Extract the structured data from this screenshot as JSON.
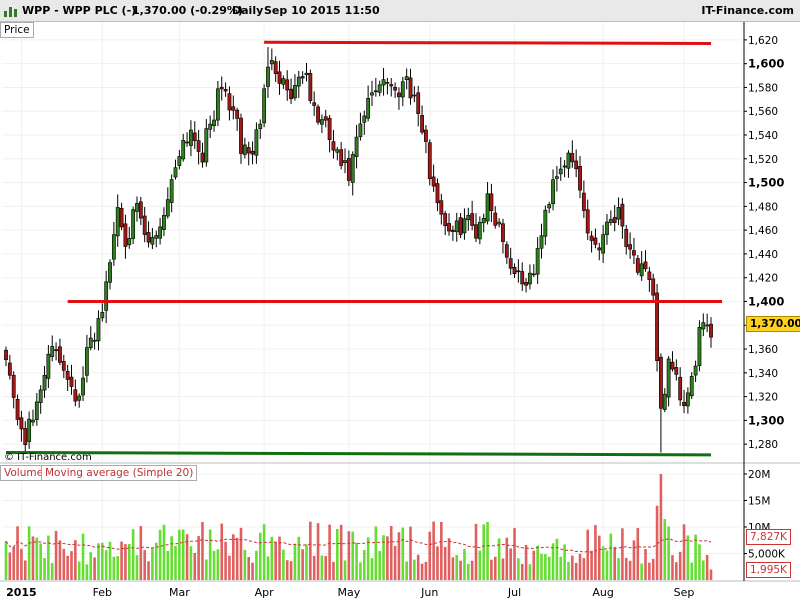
{
  "header": {
    "symbol": "WPP",
    "name": "WPP - WPP PLC (-)",
    "quote": "1,370.00 (-0.29%)",
    "interval": "Daily",
    "datetime": "Sep 10 2015 11:50",
    "brand": "IT-Finance.com"
  },
  "price_panel": {
    "tag": "Price",
    "watermark": "© IT-Finance.com",
    "last_price_label": "1,370.00",
    "colors": {
      "up": "#2e7d1e",
      "down": "#a01818",
      "last_price_bg": "#ffd21f"
    }
  },
  "volume_panel": {
    "tags": [
      "Volume",
      "Moving average (Simple 20)"
    ],
    "ma_value_label": "7,827K",
    "last_volume_label": "1,995K",
    "colors": {
      "up": "#66dd33",
      "down": "#e06060",
      "ma": "#cc3333"
    }
  },
  "chart_data": [
    {
      "type": "candlestick",
      "ylim": [
        1265,
        1630
      ],
      "y_ticks": [
        1280,
        1300,
        1320,
        1340,
        1360,
        1380,
        1400,
        1420,
        1440,
        1460,
        1480,
        1500,
        1520,
        1540,
        1560,
        1580,
        1600,
        1620
      ],
      "y_tick_labels": [
        "1,280",
        "1,300",
        "1,320",
        "1,340",
        "1,360",
        "1,380",
        "1,400",
        "1,420",
        "1,440",
        "1,460",
        "1,480",
        "1,500",
        "1,520",
        "1,540",
        "1,560",
        "1,580",
        "1,600",
        "1,620"
      ],
      "x_labels": [
        "2015",
        "Feb",
        "Mar",
        "Apr",
        "May",
        "Jun",
        "Jul",
        "Aug",
        "Sep"
      ],
      "x_label_dates": [
        "2015-01-02",
        "2015-02-02",
        "2015-03-02",
        "2015-04-01",
        "2015-05-01",
        "2015-06-01",
        "2015-07-01",
        "2015-08-03",
        "2015-09-01"
      ],
      "last_price": 1370,
      "anchors": [
        [
          "2014-12-29",
          1360
        ],
        [
          "2014-12-31",
          1315
        ],
        [
          "2015-01-05",
          1285
        ],
        [
          "2015-01-07",
          1300
        ],
        [
          "2015-01-12",
          1345
        ],
        [
          "2015-01-15",
          1360
        ],
        [
          "2015-01-20",
          1340
        ],
        [
          "2015-01-23",
          1315
        ],
        [
          "2015-01-27",
          1355
        ],
        [
          "2015-01-30",
          1385
        ],
        [
          "2015-02-03",
          1410
        ],
        [
          "2015-02-06",
          1480
        ],
        [
          "2015-02-10",
          1455
        ],
        [
          "2015-02-13",
          1475
        ],
        [
          "2015-02-18",
          1445
        ],
        [
          "2015-02-23",
          1465
        ],
        [
          "2015-02-26",
          1500
        ],
        [
          "2015-03-02",
          1530
        ],
        [
          "2015-03-05",
          1545
        ],
        [
          "2015-03-10",
          1525
        ],
        [
          "2015-03-13",
          1560
        ],
        [
          "2015-03-17",
          1580
        ],
        [
          "2015-03-20",
          1560
        ],
        [
          "2015-03-24",
          1530
        ],
        [
          "2015-03-27",
          1525
        ],
        [
          "2015-03-31",
          1555
        ],
        [
          "2015-04-03",
          1610
        ],
        [
          "2015-04-07",
          1590
        ],
        [
          "2015-04-10",
          1575
        ],
        [
          "2015-04-15",
          1595
        ],
        [
          "2015-04-20",
          1560
        ],
        [
          "2015-04-23",
          1545
        ],
        [
          "2015-04-28",
          1520
        ],
        [
          "2015-05-01",
          1505
        ],
        [
          "2015-05-06",
          1545
        ],
        [
          "2015-05-11",
          1575
        ],
        [
          "2015-05-14",
          1590
        ],
        [
          "2015-05-19",
          1575
        ],
        [
          "2015-05-22",
          1590
        ],
        [
          "2015-05-27",
          1560
        ],
        [
          "2015-06-01",
          1510
        ],
        [
          "2015-06-04",
          1475
        ],
        [
          "2015-06-09",
          1455
        ],
        [
          "2015-06-12",
          1470
        ],
        [
          "2015-06-17",
          1460
        ],
        [
          "2015-06-22",
          1485
        ],
        [
          "2015-06-25",
          1465
        ],
        [
          "2015-06-30",
          1430
        ],
        [
          "2015-07-03",
          1420
        ],
        [
          "2015-07-07",
          1415
        ],
        [
          "2015-07-10",
          1455
        ],
        [
          "2015-07-15",
          1505
        ],
        [
          "2015-07-20",
          1520
        ],
        [
          "2015-07-23",
          1510
        ],
        [
          "2015-07-28",
          1460
        ],
        [
          "2015-07-31",
          1445
        ],
        [
          "2015-08-04",
          1470
        ],
        [
          "2015-08-07",
          1475
        ],
        [
          "2015-08-11",
          1455
        ],
        [
          "2015-08-14",
          1430
        ],
        [
          "2015-08-18",
          1420
        ],
        [
          "2015-08-20",
          1400
        ],
        [
          "2015-08-24",
          1310
        ],
        [
          "2015-08-26",
          1345
        ],
        [
          "2015-08-28",
          1330
        ],
        [
          "2015-09-01",
          1310
        ],
        [
          "2015-09-03",
          1330
        ],
        [
          "2015-09-07",
          1375
        ],
        [
          "2015-09-10",
          1370
        ]
      ],
      "lines": [
        {
          "from": [
            "2015-04-01",
            1618
          ],
          "to": [
            "2015-09-10",
            1617
          ],
          "color": "#e01010"
        },
        {
          "from": [
            "2015-01-20",
            1400
          ],
          "to": [
            "2015-09-14",
            1400
          ],
          "color": "#e01010"
        },
        {
          "from": [
            "2014-12-29",
            1273
          ],
          "to": [
            "2015-09-10",
            1271
          ],
          "color": "#107010"
        }
      ]
    },
    {
      "type": "bar",
      "name": "Volume",
      "ylim": [
        0,
        21500000
      ],
      "y_ticks": [
        5000000,
        10000000,
        15000000,
        20000000
      ],
      "y_tick_labels": [
        "5,000K",
        "10M",
        "15M",
        "20M"
      ],
      "ma_period": 20,
      "base_volume": 6500000,
      "spikes": [
        [
          "2015-08-24",
          20000000
        ],
        [
          "2015-08-21",
          14000000
        ],
        [
          "2015-08-25",
          11500000
        ],
        [
          "2015-09-01",
          10500000
        ]
      ]
    }
  ]
}
